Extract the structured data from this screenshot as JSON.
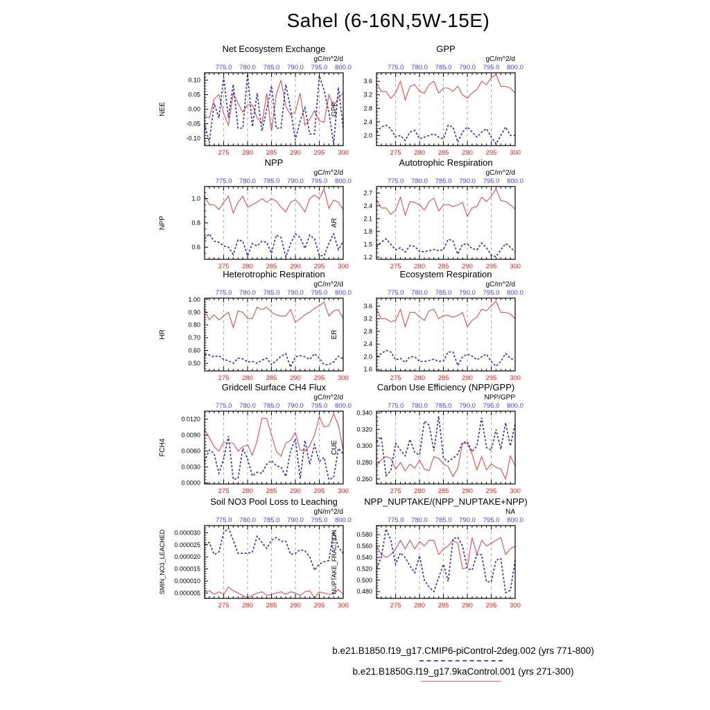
{
  "title": "Sahel (6-16N,5W-15E)",
  "colors": {
    "red_line": "#e04c4c",
    "blue_line": "#3434bd",
    "red_tick_label": "#ff1a1a",
    "blue_tick_label": "#4343ff",
    "gridline": "#aaaaaa",
    "axis": "#000000"
  },
  "legend": {
    "entries": [
      {
        "label": "b.e21.B1850.f19_g17.CMIP6-piControl-2deg.002 (yrs 771-800)",
        "line_style": "dashed",
        "color": "#5050cc"
      },
      {
        "label": "b.e21.B1850G.f19_g17.9kaControl.001 (yrs 271-300)",
        "line_style": "solid",
        "color": "#e87070"
      }
    ]
  },
  "chart_data": {
    "type": "line",
    "x_bottom_axis": {
      "range": [
        271,
        300
      ],
      "years": [
        271,
        272,
        273,
        274,
        275,
        276,
        277,
        278,
        279,
        280,
        281,
        282,
        283,
        284,
        285,
        286,
        287,
        288,
        289,
        290,
        291,
        292,
        293,
        294,
        295,
        296,
        297,
        298,
        299,
        300
      ],
      "major_ticks": [
        275,
        280,
        285,
        290,
        295,
        300
      ],
      "tick_labels": [
        "275",
        "280",
        "285",
        "290",
        "295",
        "300"
      ],
      "minor_step": 1
    },
    "x_top_axis": {
      "range": [
        771,
        800
      ],
      "years": [
        771,
        772,
        773,
        774,
        775,
        776,
        777,
        778,
        779,
        780,
        781,
        782,
        783,
        784,
        785,
        786,
        787,
        788,
        789,
        790,
        791,
        792,
        793,
        794,
        795,
        796,
        797,
        798,
        799,
        800
      ],
      "major_ticks": [
        775,
        780,
        785,
        790,
        795,
        800
      ],
      "tick_labels": [
        "775.0",
        "780.0",
        "785.0",
        "790.0",
        "795.0",
        "800.0"
      ],
      "minor_step": 1
    },
    "gridlines_at": [
      275,
      280,
      285,
      290,
      295
    ],
    "panels": [
      {
        "title": "Net Ecosystem Exchange",
        "units": "gC/m^2/d",
        "ylabel": "NEE",
        "ylim": [
          -0.125,
          0.125
        ],
        "yticks": [
          -0.1,
          -0.05,
          0.0,
          0.05,
          0.1
        ],
        "ytick_labels": [
          "-0.10",
          "-0.05",
          "0.00",
          "0.05",
          "0.10"
        ],
        "yminor": 0.01,
        "series": {
          "red": [
            -0.025,
            -0.03,
            0.035,
            0.05,
            -0.015,
            -0.055,
            0.055,
            0.02,
            -0.01,
            0.015,
            0.015,
            -0.03,
            -0.05,
            0.055,
            -0.075,
            0.05,
            0.1,
            0.01,
            -0.02,
            -0.01,
            0.055,
            -0.055,
            -0.035,
            -0.005,
            -0.04,
            -0.045,
            0.05,
            0.01,
            0.04,
            0.055
          ],
          "blue": [
            -0.05,
            -0.115,
            0.02,
            -0.03,
            0.11,
            -0.03,
            0.085,
            -0.065,
            -0.065,
            0.12,
            -0.06,
            0.055,
            -0.075,
            0.0,
            0.08,
            -0.065,
            -0.065,
            0.085,
            0.0,
            -0.105,
            -0.04,
            0.005,
            -0.085,
            -0.085,
            0.115,
            0.065,
            -0.01,
            -0.12,
            0.075,
            -0.065
          ]
        }
      },
      {
        "title": "GPP",
        "units": "gC/m^2/d",
        "ylabel": "GPP",
        "ylim": [
          1.7,
          3.85
        ],
        "yticks": [
          2.0,
          2.4,
          2.8,
          3.2,
          3.6
        ],
        "ytick_labels": [
          "2.0",
          "2.4",
          "2.8",
          "3.2",
          "3.6"
        ],
        "yminor": 0.1,
        "series": {
          "red": [
            3.55,
            3.3,
            3.3,
            3.1,
            3.25,
            3.6,
            3.05,
            3.45,
            3.5,
            3.3,
            3.25,
            3.5,
            3.6,
            3.25,
            3.4,
            3.4,
            3.3,
            3.45,
            3.2,
            3.1,
            3.25,
            3.35,
            3.6,
            3.5,
            3.7,
            3.8,
            3.45,
            3.45,
            3.4,
            3.25
          ],
          "blue": [
            2.1,
            2.25,
            2.3,
            2.2,
            1.95,
            2.0,
            1.85,
            2.1,
            2.15,
            1.9,
            1.95,
            2.0,
            2.05,
            1.95,
            1.9,
            2.3,
            2.25,
            1.8,
            2.1,
            2.25,
            2.1,
            1.95,
            2.1,
            2.2,
            1.95,
            1.75,
            2.0,
            2.25,
            2.0,
            2.0
          ]
        }
      },
      {
        "title": "NPP",
        "units": "gC/m^2/d",
        "ylabel": "NPP",
        "ylim": [
          0.5,
          1.1
        ],
        "yticks": [
          0.6,
          0.8,
          1.0
        ],
        "ytick_labels": [
          "0.6",
          "0.8",
          "1.0"
        ],
        "yminor": 0.05,
        "series": {
          "red": [
            1.02,
            0.95,
            0.95,
            0.91,
            0.97,
            1.02,
            0.88,
            0.97,
            1.02,
            0.93,
            0.95,
            0.97,
            1.0,
            0.97,
            1.0,
            0.98,
            0.93,
            0.89,
            0.97,
            0.99,
            0.95,
            0.89,
            1.0,
            1.03,
            1.0,
            1.08,
            0.92,
            0.99,
            0.97,
            0.91
          ],
          "blue": [
            0.67,
            0.71,
            0.65,
            0.64,
            0.61,
            0.6,
            0.54,
            0.66,
            0.65,
            0.53,
            0.63,
            0.61,
            0.65,
            0.64,
            0.55,
            0.7,
            0.68,
            0.52,
            0.63,
            0.71,
            0.68,
            0.59,
            0.7,
            0.67,
            0.53,
            0.53,
            0.63,
            0.71,
            0.58,
            0.65
          ]
        }
      },
      {
        "title": "Autotrophic Respiration",
        "units": "gC/m^2/d",
        "ylabel": "AR",
        "ylim": [
          1.15,
          2.85
        ],
        "yticks": [
          1.2,
          1.5,
          1.8,
          2.1,
          2.4,
          2.7
        ],
        "ytick_labels": [
          "1.2",
          "1.5",
          "1.8",
          "2.1",
          "2.4",
          "2.7"
        ],
        "yminor": 0.1,
        "series": {
          "red": [
            2.55,
            2.35,
            2.35,
            2.2,
            2.3,
            2.6,
            2.18,
            2.5,
            2.48,
            2.42,
            2.3,
            2.5,
            2.58,
            2.28,
            2.42,
            2.43,
            2.38,
            2.42,
            2.48,
            2.15,
            2.35,
            2.38,
            2.6,
            2.5,
            2.62,
            2.8,
            2.52,
            2.5,
            2.42,
            2.32
          ],
          "blue": [
            1.44,
            1.55,
            1.63,
            1.5,
            1.37,
            1.42,
            1.32,
            1.47,
            1.45,
            1.33,
            1.33,
            1.35,
            1.38,
            1.35,
            1.38,
            1.62,
            1.58,
            1.27,
            1.5,
            1.51,
            1.4,
            1.37,
            1.53,
            1.42,
            1.25,
            1.21,
            1.37,
            1.52,
            1.43,
            1.33
          ]
        }
      },
      {
        "title": "Heterotrophic Respiration",
        "units": "gC/m^2/d",
        "ylabel": "HR",
        "ylim": [
          0.44,
          1.01
        ],
        "yticks": [
          0.5,
          0.6,
          0.7,
          0.8,
          0.9,
          1.0
        ],
        "ytick_labels": [
          "0.50",
          "0.60",
          "0.70",
          "0.80",
          "0.90",
          "1.00"
        ],
        "yminor": 0.02,
        "series": {
          "red": [
            0.92,
            0.84,
            0.88,
            0.84,
            0.87,
            0.9,
            0.78,
            0.91,
            0.9,
            0.85,
            0.85,
            0.94,
            0.92,
            0.94,
            0.9,
            0.88,
            0.87,
            0.87,
            0.92,
            0.82,
            0.85,
            0.88,
            0.9,
            0.93,
            0.95,
            0.98,
            0.87,
            0.91,
            0.92,
            0.85
          ],
          "blue": [
            0.57,
            0.565,
            0.55,
            0.56,
            0.53,
            0.52,
            0.5,
            0.54,
            0.535,
            0.51,
            0.515,
            0.5,
            0.525,
            0.54,
            0.49,
            0.52,
            0.555,
            0.575,
            0.47,
            0.55,
            0.56,
            0.55,
            0.53,
            0.575,
            0.54,
            0.49,
            0.49,
            0.51,
            0.555,
            0.535
          ]
        }
      },
      {
        "title": "Ecosystem Respiration",
        "units": "gC/m^2/d",
        "ylabel": "ER",
        "ylim": [
          1.55,
          3.85
        ],
        "yticks": [
          1.6,
          2.0,
          2.4,
          2.8,
          3.2,
          3.6
        ],
        "ytick_labels": [
          "1.6",
          "2.0",
          "2.4",
          "2.8",
          "3.2",
          "3.6"
        ],
        "yminor": 0.1,
        "series": {
          "red": [
            3.5,
            3.2,
            3.2,
            3.1,
            3.15,
            3.5,
            2.95,
            3.4,
            3.4,
            3.25,
            3.15,
            3.45,
            3.5,
            3.2,
            3.3,
            3.3,
            3.25,
            3.3,
            3.4,
            2.95,
            3.15,
            3.25,
            3.5,
            3.45,
            3.6,
            3.75,
            3.4,
            3.4,
            3.35,
            3.2
          ],
          "blue": [
            2.0,
            2.1,
            2.2,
            2.15,
            1.9,
            1.95,
            1.82,
            2.0,
            2.0,
            1.85,
            1.85,
            1.88,
            1.92,
            1.85,
            1.87,
            2.15,
            2.15,
            1.72,
            2.0,
            2.08,
            2.02,
            1.9,
            2.0,
            2.08,
            1.85,
            1.7,
            1.85,
            2.1,
            1.95,
            1.88
          ]
        }
      },
      {
        "title": "Gridcell Surface CH4 Flux",
        "units": "gC/m^2/d",
        "ylabel": "FCH4",
        "ylim": [
          -0.0002,
          0.0135
        ],
        "yticks": [
          0.0,
          0.003,
          0.006,
          0.009,
          0.012
        ],
        "ytick_labels": [
          "0.0000",
          "0.0030",
          "0.0060",
          "0.0090",
          "0.0120"
        ],
        "yminor": 0.0006,
        "series": {
          "red": [
            0.01,
            0.0085,
            0.0068,
            0.006,
            0.0077,
            0.0075,
            0.0075,
            0.006,
            0.0068,
            0.0072,
            0.0052,
            0.008,
            0.0122,
            0.0121,
            0.009,
            0.006,
            0.005,
            0.0075,
            0.008,
            0.0095,
            0.0062,
            0.006,
            0.007,
            0.009,
            0.0125,
            0.0105,
            0.0108,
            0.013,
            0.0108,
            0.0062
          ],
          "blue": [
            0.004,
            0.0062,
            0.0055,
            0.0018,
            0.0045,
            0.0088,
            0.0007,
            0.0008,
            0.0065,
            0.0045,
            0.0013,
            0.002,
            0.0018,
            0.0035,
            0.0042,
            0.0032,
            0.003,
            0.0012,
            0.006,
            0.0083,
            0.0008,
            0.008,
            0.0035,
            0.0072,
            0.004,
            0.0048,
            0.0006,
            0.001,
            0.0065,
            0.0055
          ]
        }
      },
      {
        "title": "Carbon Use Efficiency (NPP/GPP)",
        "units": "NPP/GPP",
        "ylabel": "CUE",
        "ylim": [
          0.254,
          0.342
        ],
        "yticks": [
          0.26,
          0.28,
          0.3,
          0.32,
          0.34
        ],
        "ytick_labels": [
          "0.260",
          "0.280",
          "0.300",
          "0.320",
          "0.340"
        ],
        "yminor": 0.005,
        "series": {
          "red": [
            0.276,
            0.283,
            0.287,
            0.285,
            0.272,
            0.28,
            0.27,
            0.278,
            0.273,
            0.283,
            0.272,
            0.27,
            0.287,
            0.285,
            0.278,
            0.275,
            0.263,
            0.273,
            0.303,
            0.303,
            0.29,
            0.271,
            0.287,
            0.271,
            0.278,
            0.274,
            0.272,
            0.26,
            0.288,
            0.276
          ],
          "blue": [
            0.305,
            0.311,
            0.264,
            0.27,
            0.303,
            0.295,
            0.288,
            0.308,
            0.292,
            0.289,
            0.33,
            0.325,
            0.294,
            0.336,
            0.285,
            0.281,
            0.285,
            0.29,
            0.304,
            0.305,
            0.293,
            0.3,
            0.334,
            0.298,
            0.295,
            0.32,
            0.296,
            0.328,
            0.3,
            0.327
          ]
        }
      },
      {
        "title": "Soil NO3 Pool Loss to Leaching",
        "units": "gN/m^2/d",
        "ylabel": "SMIN_NO3_LEACHED",
        "ylim": [
          2.8e-06,
          3.3e-05
        ],
        "yticks": [
          5e-06,
          1e-05,
          1.5e-05,
          2e-05,
          2.5e-05,
          3e-05
        ],
        "ytick_labels": [
          "0.000005",
          "0.000010",
          "0.000015",
          "0.000020",
          "0.000025",
          "0.000030"
        ],
        "yminor": 1e-06,
        "series": {
          "red": [
            5.5e-06,
            6e-06,
            4.5e-06,
            5.5e-06,
            4.5e-06,
            7.5e-06,
            6e-06,
            5e-06,
            4e-06,
            3e-06,
            4e-06,
            5e-06,
            5.5e-06,
            4e-06,
            4.5e-06,
            5e-06,
            5.5e-06,
            4.5e-06,
            5.5e-06,
            5e-06,
            4e-06,
            5.5e-06,
            6e-06,
            3e-06,
            5.5e-06,
            5e-06,
            4.5e-06,
            4.5e-06,
            6.5e-06,
            4.5e-06
          ],
          "blue": [
            2.5e-05,
            2.6e-05,
            2.1e-05,
            2.2e-05,
            3e-05,
            3.2e-05,
            2.7e-05,
            2.15e-05,
            2.15e-05,
            2.15e-05,
            2.2e-05,
            2.85e-05,
            2.6e-05,
            2.35e-05,
            2.7e-05,
            2.8e-05,
            2.65e-05,
            2.65e-05,
            2.1e-05,
            2.15e-05,
            2.3e-05,
            2.25e-05,
            2e-05,
            1.45e-05,
            1.7e-05,
            1.8e-05,
            1.85e-05,
            3.05e-05,
            2.4e-05,
            2.15e-05
          ]
        }
      },
      {
        "title": "NPP_NUPTAKE/(NPP_NUPTAKE+NPP)",
        "units": "NA",
        "ylabel": "NUPTAKE_FRACTION",
        "ylim": [
          0.468,
          0.596
        ],
        "yticks": [
          0.48,
          0.5,
          0.52,
          0.54,
          0.56,
          0.58
        ],
        "ytick_labels": [
          "0.480",
          "0.500",
          "0.520",
          "0.540",
          "0.560",
          "0.580"
        ],
        "yminor": 0.005,
        "series": {
          "red": [
            0.56,
            0.545,
            0.54,
            0.545,
            0.555,
            0.57,
            0.555,
            0.57,
            0.555,
            0.568,
            0.56,
            0.57,
            0.57,
            0.545,
            0.555,
            0.56,
            0.57,
            0.565,
            0.52,
            0.522,
            0.575,
            0.545,
            0.57,
            0.56,
            0.565,
            0.57,
            0.575,
            0.545,
            0.555,
            0.56
          ],
          "blue": [
            0.52,
            0.54,
            0.59,
            0.57,
            0.528,
            0.548,
            0.54,
            0.525,
            0.513,
            0.543,
            0.5,
            0.488,
            0.48,
            0.505,
            0.528,
            0.498,
            0.573,
            0.575,
            0.56,
            0.52,
            0.518,
            0.545,
            0.545,
            0.497,
            0.497,
            0.535,
            0.538,
            0.478,
            0.482,
            0.535
          ]
        }
      }
    ]
  }
}
